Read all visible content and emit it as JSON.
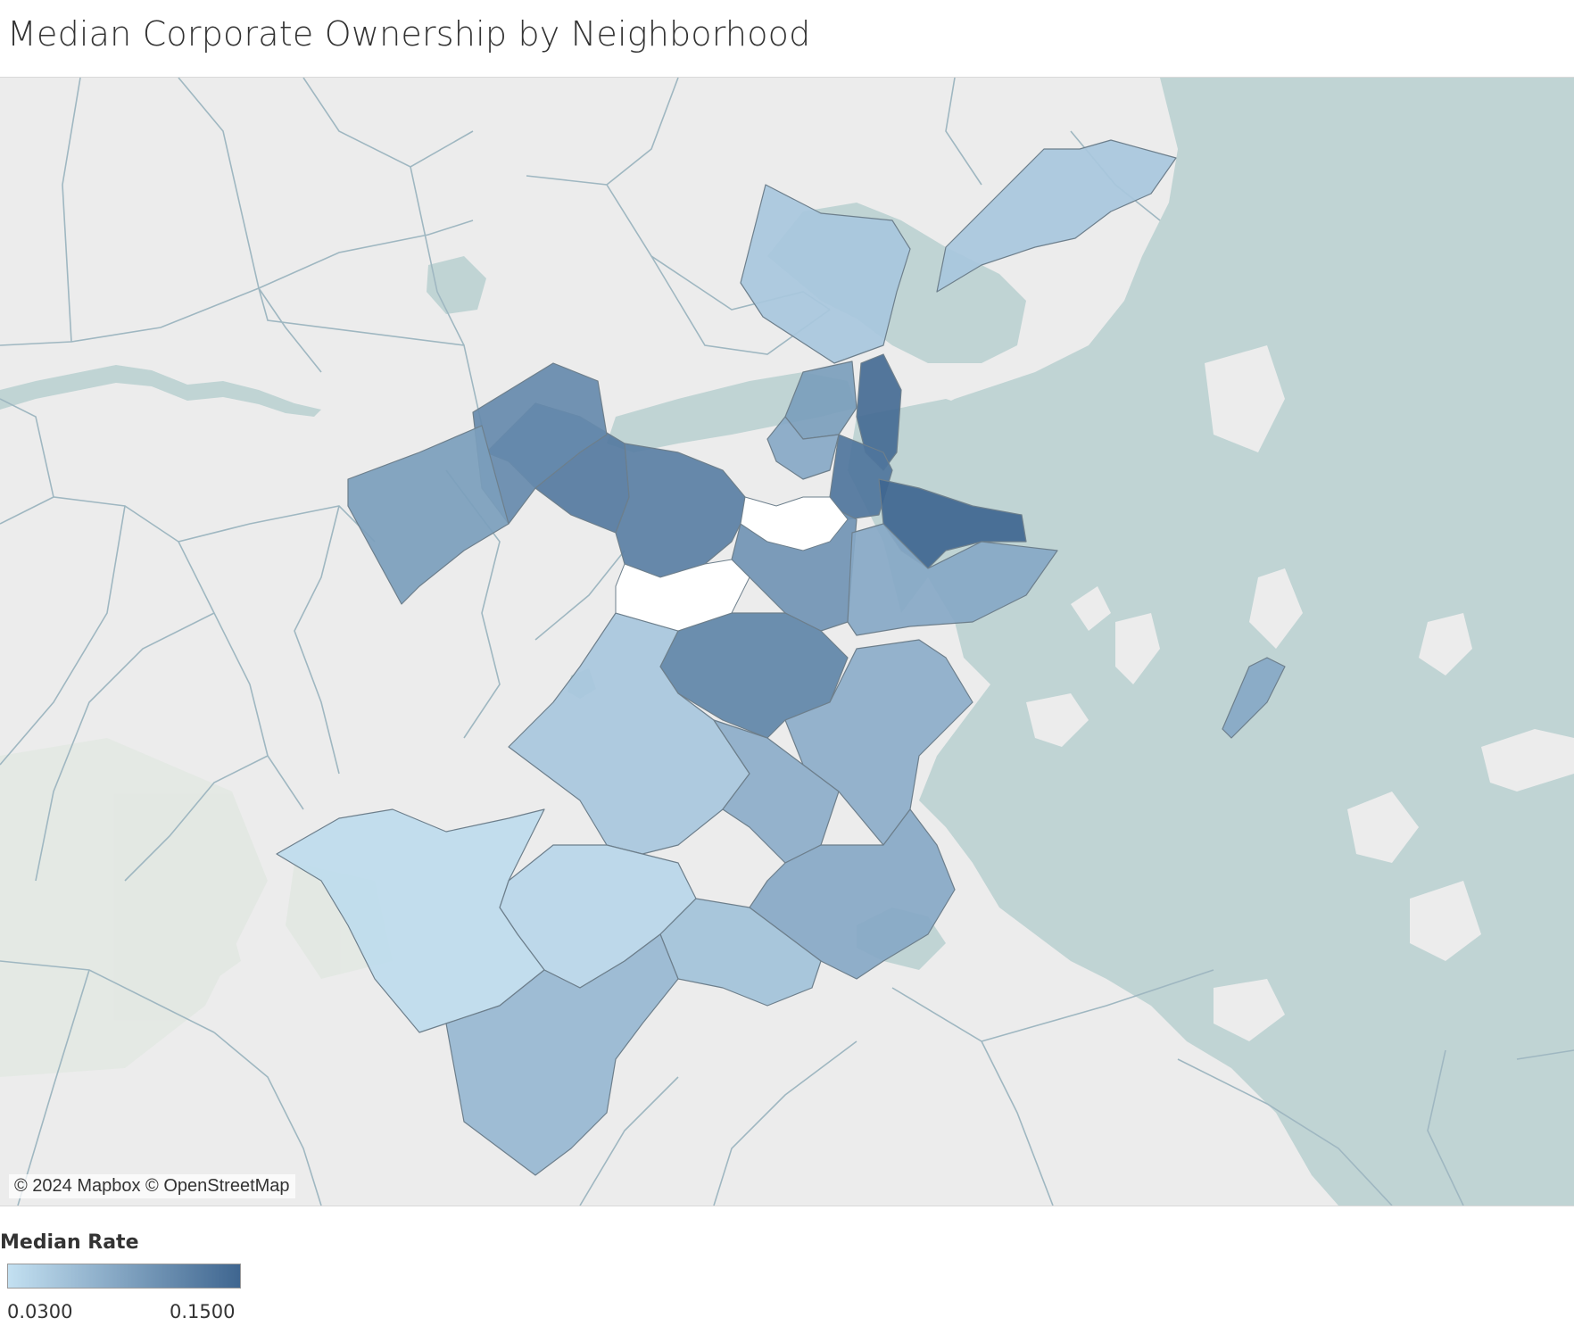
{
  "title": "Median Corporate Ownership by Neighborhood",
  "map": {
    "attribution": "© 2024 Mapbox © OpenStreetMap",
    "colors": {
      "land": "#ececec",
      "water": "#c0d4d4",
      "road": "#9fb7c1",
      "region_border": "#6d7f8c"
    }
  },
  "legend": {
    "title": "Median Rate",
    "min_label": "0.0300",
    "max_label": "0.1500",
    "min_value": 0.03,
    "max_value": 0.15,
    "color_low": "#c3e0f1",
    "color_high": "#3f6690"
  },
  "neighborhoods": [
    {
      "id": "charlestown",
      "rate": 0.055
    },
    {
      "id": "east-boston",
      "rate": 0.055
    },
    {
      "id": "north-end",
      "rate": 0.145
    },
    {
      "id": "west-end",
      "rate": 0.095
    },
    {
      "id": "downtown",
      "rate": 0.135
    },
    {
      "id": "beacon-hill",
      "rate": 0.085
    },
    {
      "id": "back-bay",
      "rate": 0.125
    },
    {
      "id": "fenway",
      "rate": 0.13
    },
    {
      "id": "allston",
      "rate": 0.115
    },
    {
      "id": "brighton",
      "rate": 0.095
    },
    {
      "id": "south-end",
      "rate": 0.105
    },
    {
      "id": "seaport",
      "rate": 0.15
    },
    {
      "id": "south-boston",
      "rate": 0.085
    },
    {
      "id": "roxbury",
      "rate": 0.12
    },
    {
      "id": "jamaica-plain",
      "rate": 0.055
    },
    {
      "id": "dorchester-north",
      "rate": 0.08
    },
    {
      "id": "mission-hill",
      "rate": 0.08
    },
    {
      "id": "dorchester",
      "rate": 0.085
    },
    {
      "id": "roslindale",
      "rate": 0.04
    },
    {
      "id": "west-roxbury",
      "rate": 0.035
    },
    {
      "id": "mattapan",
      "rate": 0.06
    },
    {
      "id": "hyde-park",
      "rate": 0.07
    },
    {
      "id": "harbor-islands",
      "rate": 0.085
    }
  ]
}
